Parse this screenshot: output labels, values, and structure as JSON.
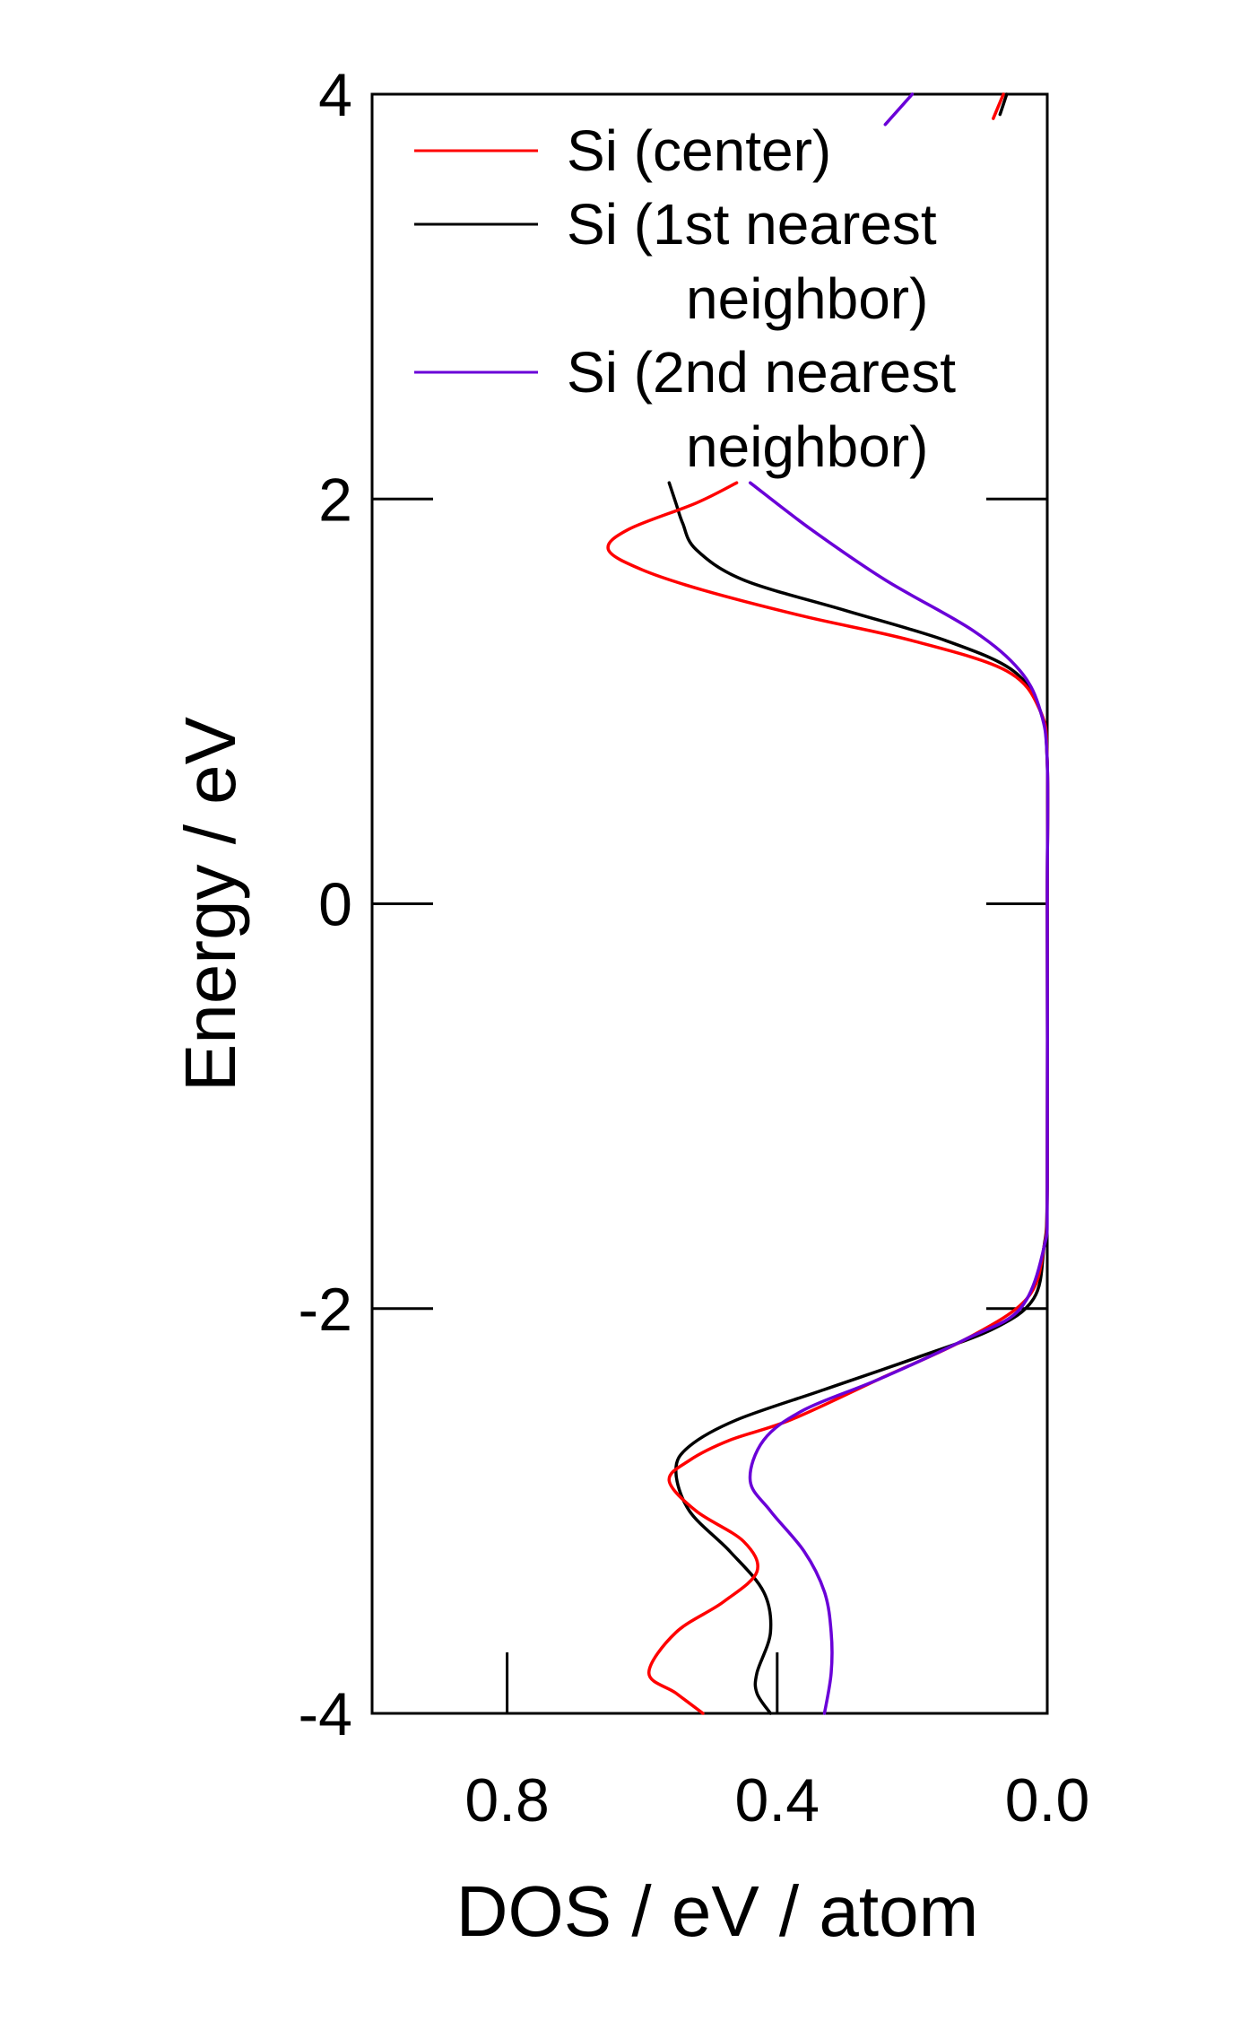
{
  "chart_data": {
    "type": "line",
    "orientation": "vertical",
    "xlabel": "DOS / eV / atom",
    "ylabel": "Energy / eV",
    "xlim": [
      1.0,
      0.0
    ],
    "ylim": [
      -4,
      4
    ],
    "xticks": [
      0.8,
      0.4,
      0.0
    ],
    "xtick_labels": [
      "0.8",
      "0.4",
      "0.0"
    ],
    "yticks": [
      -4,
      -2,
      0,
      2,
      4
    ],
    "ytick_labels": [
      "-4",
      "-2",
      "0",
      "2",
      "4"
    ],
    "grid": false,
    "legend_position": "top",
    "series": [
      {
        "name": "Si (center)",
        "legend_lines": [
          "Si (center)"
        ],
        "color": "#ff0000",
        "points": [
          [
            0.51,
            -4.0
          ],
          [
            0.55,
            -3.9
          ],
          [
            0.59,
            -3.8
          ],
          [
            0.55,
            -3.6
          ],
          [
            0.48,
            -3.45
          ],
          [
            0.43,
            -3.3
          ],
          [
            0.45,
            -3.15
          ],
          [
            0.52,
            -3.0
          ],
          [
            0.56,
            -2.85
          ],
          [
            0.53,
            -2.75
          ],
          [
            0.47,
            -2.65
          ],
          [
            0.38,
            -2.55
          ],
          [
            0.25,
            -2.35
          ],
          [
            0.12,
            -2.15
          ],
          [
            0.03,
            -1.95
          ],
          [
            0.005,
            -1.7
          ],
          [
            0.0,
            -1.4
          ],
          [
            0.0,
            0.0
          ],
          [
            0.0,
            0.7
          ],
          [
            0.01,
            0.95
          ],
          [
            0.06,
            1.15
          ],
          [
            0.2,
            1.3
          ],
          [
            0.36,
            1.42
          ],
          [
            0.51,
            1.55
          ],
          [
            0.6,
            1.65
          ],
          [
            0.65,
            1.75
          ],
          [
            0.62,
            1.85
          ],
          [
            0.52,
            1.98
          ],
          [
            0.46,
            2.08
          ]
        ]
      },
      {
        "name": "Si (1st nearest neighbor)",
        "legend_lines": [
          "Si (1st nearest",
          "neighbor)"
        ],
        "color": "#000000",
        "points": [
          [
            0.41,
            -4.0
          ],
          [
            0.43,
            -3.9
          ],
          [
            0.43,
            -3.8
          ],
          [
            0.41,
            -3.6
          ],
          [
            0.42,
            -3.4
          ],
          [
            0.47,
            -3.2
          ],
          [
            0.53,
            -3.0
          ],
          [
            0.55,
            -2.8
          ],
          [
            0.53,
            -2.68
          ],
          [
            0.46,
            -2.55
          ],
          [
            0.33,
            -2.4
          ],
          [
            0.2,
            -2.25
          ],
          [
            0.08,
            -2.1
          ],
          [
            0.02,
            -1.95
          ],
          [
            0.005,
            -1.7
          ],
          [
            0.0,
            -1.4
          ],
          [
            0.0,
            0.0
          ],
          [
            0.0,
            0.7
          ],
          [
            0.01,
            0.95
          ],
          [
            0.05,
            1.15
          ],
          [
            0.15,
            1.3
          ],
          [
            0.3,
            1.45
          ],
          [
            0.45,
            1.6
          ],
          [
            0.52,
            1.75
          ],
          [
            0.54,
            1.88
          ],
          [
            0.55,
            1.98
          ],
          [
            0.56,
            2.08
          ]
        ]
      },
      {
        "name": "Si (2nd nearest neighbor)",
        "legend_lines": [
          "Si (2nd nearest",
          "neighbor)"
        ],
        "color": "#6a00d8",
        "points": [
          [
            0.33,
            -4.0
          ],
          [
            0.32,
            -3.8
          ],
          [
            0.32,
            -3.6
          ],
          [
            0.33,
            -3.4
          ],
          [
            0.36,
            -3.2
          ],
          [
            0.41,
            -3.0
          ],
          [
            0.44,
            -2.85
          ],
          [
            0.42,
            -2.65
          ],
          [
            0.36,
            -2.5
          ],
          [
            0.25,
            -2.35
          ],
          [
            0.12,
            -2.15
          ],
          [
            0.04,
            -2.0
          ],
          [
            0.005,
            -1.7
          ],
          [
            0.0,
            -1.4
          ],
          [
            0.0,
            0.0
          ],
          [
            0.0,
            0.7
          ],
          [
            0.01,
            0.95
          ],
          [
            0.04,
            1.15
          ],
          [
            0.11,
            1.35
          ],
          [
            0.24,
            1.6
          ],
          [
            0.35,
            1.85
          ],
          [
            0.44,
            2.08
          ]
        ]
      },
      {
        "name": "upper-red-fragment",
        "color": "#ff0000",
        "points": [
          [
            0.08,
            3.88
          ],
          [
            0.065,
            4.0
          ]
        ]
      },
      {
        "name": "upper-violet-fragment",
        "color": "#6a00d8",
        "points": [
          [
            0.24,
            3.85
          ],
          [
            0.2,
            4.0
          ]
        ]
      },
      {
        "name": "upper-black-fragment",
        "color": "#000000",
        "points": [
          [
            0.07,
            3.9
          ],
          [
            0.06,
            4.0
          ]
        ]
      }
    ]
  }
}
